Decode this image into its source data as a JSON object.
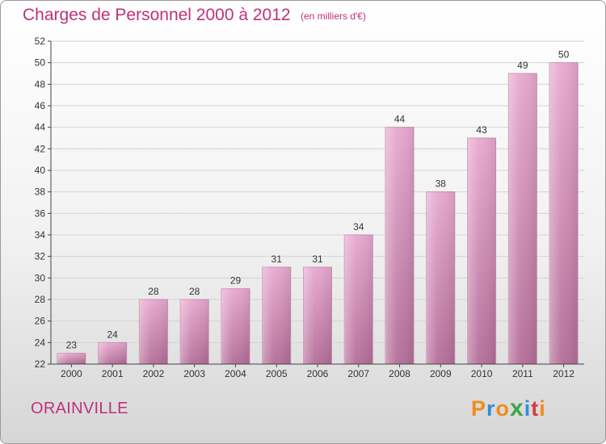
{
  "header": {
    "title": "Charges de Personnel 2000 à 2012",
    "subtitle": "(en milliers d'€)"
  },
  "footer": {
    "commune": "ORAINVILLE",
    "brand": "Proxiti",
    "brand_colors": [
      "#f08c1c",
      "#2f8fd8",
      "#f08c1c",
      "#3aa64b",
      "#2f8fd8",
      "#d93b3b",
      "#f08c1c"
    ]
  },
  "colors": {
    "title": "#c0307a",
    "bar_top": "#e8a9cf",
    "bar_bottom": "#b46e98",
    "axis": "#444444"
  },
  "chart_data": {
    "type": "bar",
    "categories": [
      "2000",
      "2001",
      "2002",
      "2003",
      "2004",
      "2005",
      "2006",
      "2007",
      "2008",
      "2009",
      "2010",
      "2011",
      "2012"
    ],
    "values": [
      23,
      24,
      28,
      28,
      29,
      31,
      31,
      34,
      44,
      38,
      43,
      49,
      50
    ],
    "ylim": [
      22,
      52
    ],
    "yticks": [
      22,
      24,
      26,
      28,
      30,
      32,
      34,
      36,
      38,
      40,
      42,
      44,
      46,
      48,
      50,
      52
    ],
    "grid": true,
    "legend": "none"
  }
}
